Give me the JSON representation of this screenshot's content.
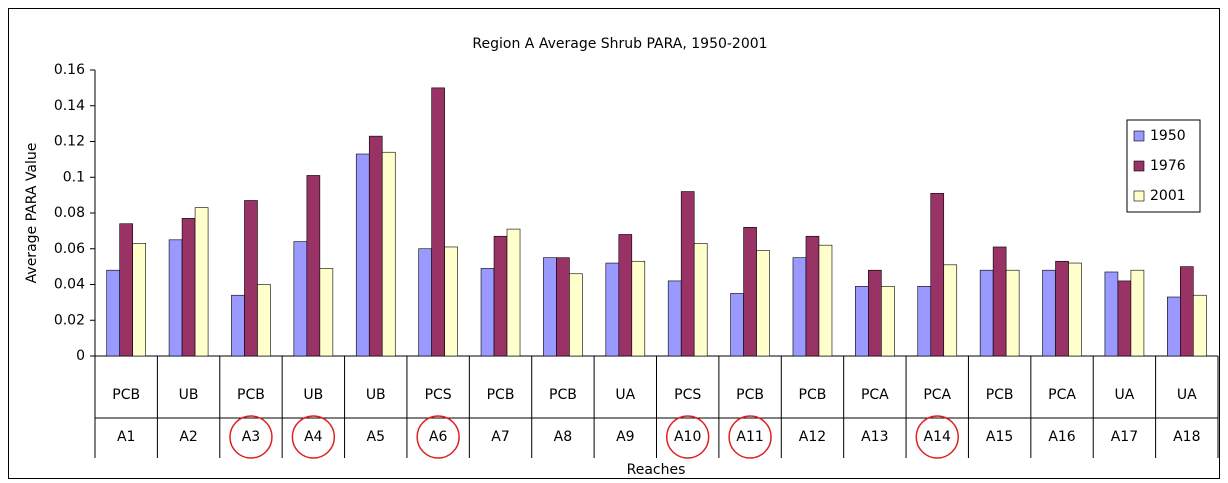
{
  "chart_data": {
    "type": "bar",
    "title": "Region A Average Shrub PARA, 1950-2001",
    "y_label": "Average PARA Value",
    "x_label": "Reaches",
    "categories": [
      "A1",
      "A2",
      "A3",
      "A4",
      "A5",
      "A6",
      "A7",
      "A8",
      "A9",
      "A10",
      "A11",
      "A12",
      "A13",
      "A14",
      "A15",
      "A16",
      "A17",
      "A18"
    ],
    "category_types": [
      "PCB",
      "UB",
      "PCB",
      "UB",
      "UB",
      "PCS",
      "PCB",
      "PCB",
      "UA",
      "PCS",
      "PCB",
      "PCB",
      "PCA",
      "PCA",
      "PCB",
      "PCA",
      "UA",
      "UA"
    ],
    "circled": [
      false,
      false,
      true,
      true,
      false,
      true,
      false,
      false,
      false,
      true,
      true,
      false,
      false,
      true,
      false,
      false,
      false,
      false
    ],
    "circle_color": "#e02020",
    "series": [
      {
        "name": "1950",
        "color": "#9999ff",
        "values": [
          0.048,
          0.065,
          0.034,
          0.064,
          0.113,
          0.06,
          0.049,
          0.055,
          0.052,
          0.042,
          0.035,
          0.055,
          0.039,
          0.039,
          0.048,
          0.048,
          0.047,
          0.033
        ]
      },
      {
        "name": "1976",
        "color": "#993366",
        "values": [
          0.074,
          0.077,
          0.087,
          0.101,
          0.123,
          0.15,
          0.067,
          0.055,
          0.068,
          0.092,
          0.072,
          0.067,
          0.048,
          0.091,
          0.061,
          0.053,
          0.042,
          0.05
        ]
      },
      {
        "name": "2001",
        "color": "#ffffcc",
        "values": [
          0.063,
          0.083,
          0.04,
          0.049,
          0.114,
          0.061,
          0.071,
          0.046,
          0.053,
          0.063,
          0.059,
          0.062,
          0.039,
          0.051,
          0.048,
          0.052,
          0.048,
          0.034
        ]
      }
    ],
    "ylim": [
      0,
      0.16
    ],
    "yticks": [
      0,
      0.02,
      0.04,
      0.06,
      0.08,
      0.1,
      0.12,
      0.14,
      0.16
    ],
    "grid": false,
    "legend": "right"
  }
}
